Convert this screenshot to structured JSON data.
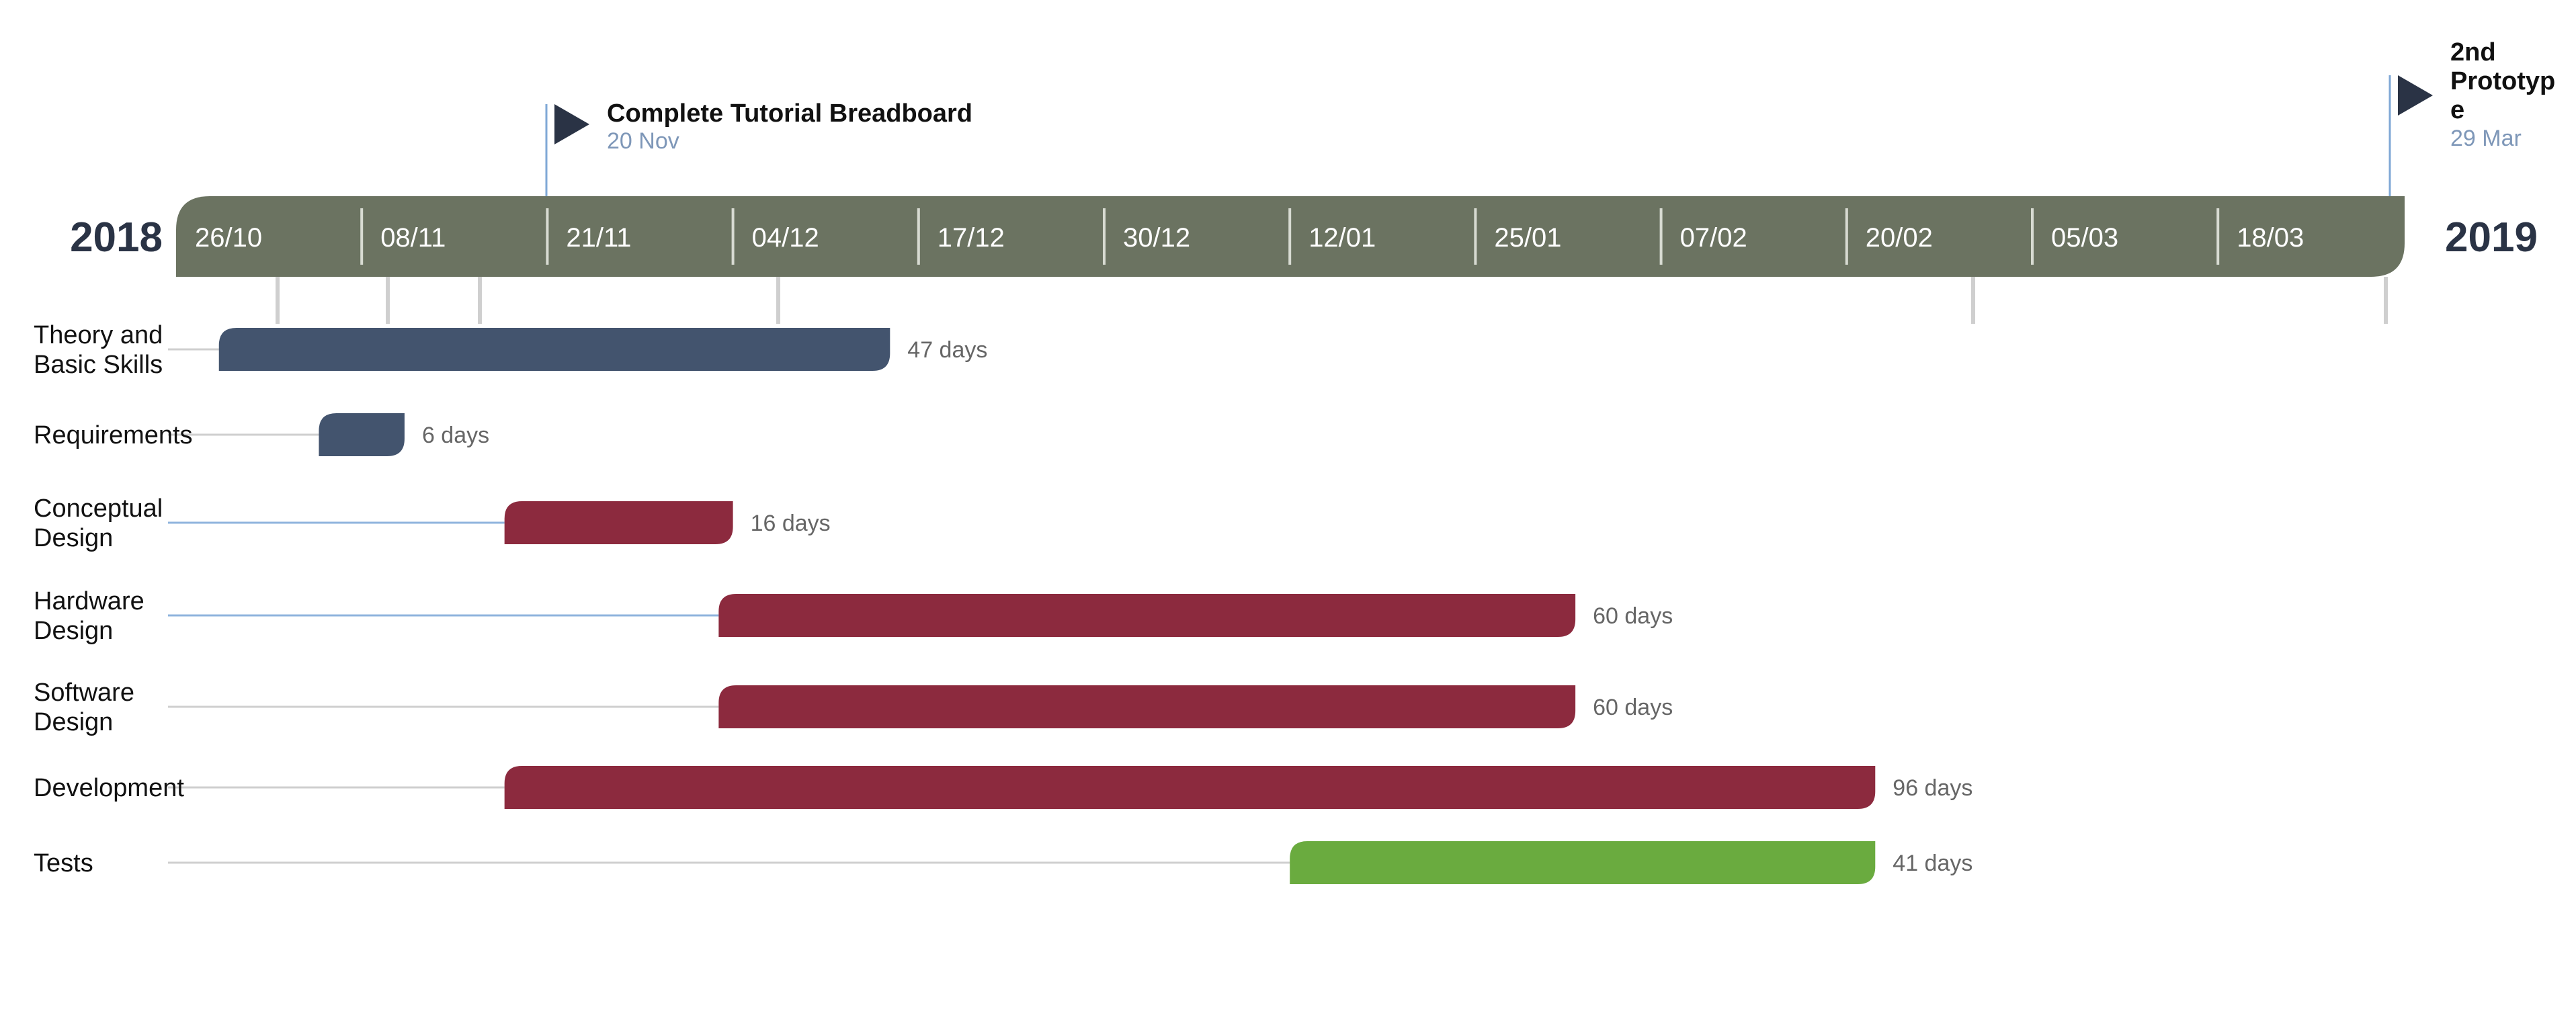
{
  "chart_data": {
    "type": "gantt",
    "start_year_label": "2018",
    "end_year_label": "2019",
    "timeline_ticks": [
      "26/10",
      "08/11",
      "21/11",
      "04/12",
      "17/12",
      "30/12",
      "12/01",
      "25/01",
      "07/02",
      "20/02",
      "05/03",
      "18/03"
    ],
    "milestones": [
      {
        "title": "Complete Tutorial Breadboard",
        "date": "20 Nov"
      },
      {
        "title": "2nd Prototype",
        "title_lines": [
          "2nd",
          "Prototyp",
          "e"
        ],
        "date": "29 Mar"
      }
    ],
    "tasks": [
      {
        "name": "Theory and Basic Skills",
        "name_lines": [
          "Theory and",
          "Basic Skills"
        ],
        "start": "2018-10-19",
        "end": "2018-12-05",
        "duration": "47 days",
        "color": "#43546e"
      },
      {
        "name": "Requirements",
        "name_lines": [
          "Requirements"
        ],
        "start": "2018-10-26",
        "end": "2018-11-01",
        "duration": "6 days",
        "color": "#43546e"
      },
      {
        "name": "Conceptual Design",
        "name_lines": [
          "Conceptual",
          "Design"
        ],
        "start": "2018-11-08",
        "end": "2018-11-24",
        "duration": "16 days",
        "color": "#8c2a3e"
      },
      {
        "name": "Hardware Design",
        "name_lines": [
          "Hardware",
          "Design"
        ],
        "start": "2018-11-23",
        "end": "2019-01-22",
        "duration": "60 days",
        "color": "#8c2a3e"
      },
      {
        "name": "Software Design",
        "name_lines": [
          "Software",
          "Design"
        ],
        "start": "2018-11-23",
        "end": "2019-01-22",
        "duration": "60 days",
        "color": "#8c2a3e"
      },
      {
        "name": "Development",
        "name_lines": [
          "Development"
        ],
        "start": "2018-11-08",
        "end": "2019-02-12",
        "duration": "96 days",
        "color": "#8c2a3e"
      },
      {
        "name": "Tests",
        "name_lines": [
          "Tests"
        ],
        "start": "2019-01-02",
        "end": "2019-02-12",
        "duration": "41 days",
        "color": "#6aab3f"
      }
    ],
    "colors": {
      "timeline_band": "#6b7361",
      "year_text": "#2a3345",
      "milestone_flag": "#2a3345",
      "milestone_line": "#7fa8d6",
      "date_text": "#7e97b8",
      "duration_text": "#666666",
      "connector": "#cfcfcf"
    }
  }
}
